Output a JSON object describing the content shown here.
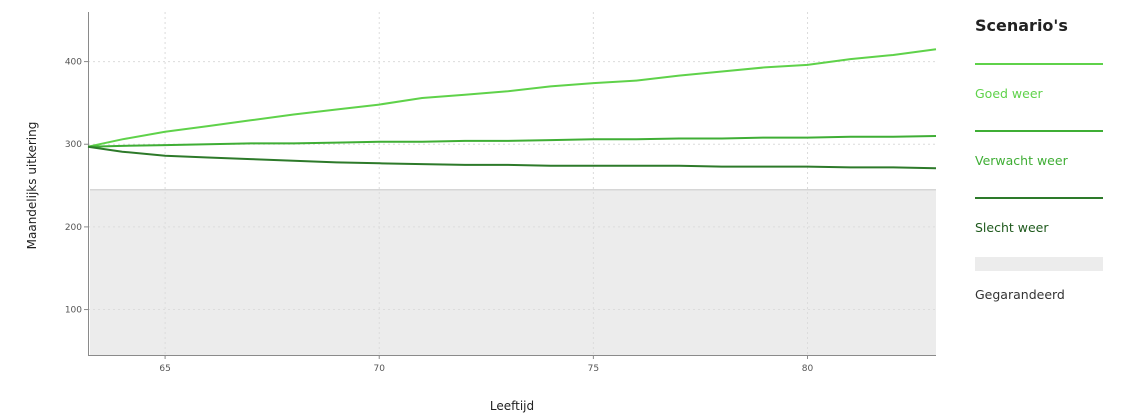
{
  "chart_data": {
    "type": "line",
    "xlabel": "Leeftijd",
    "ylabel": "Maandelijks uitkering",
    "xlim": [
      63.2,
      83
    ],
    "ylim": [
      45,
      460
    ],
    "xticks": [
      65,
      70,
      75,
      80
    ],
    "yticks": [
      100,
      200,
      300,
      400
    ],
    "grid": true,
    "legend_title": "Scenario's",
    "legend_position": "right",
    "x": [
      63.2,
      64,
      65,
      66,
      67,
      68,
      69,
      70,
      71,
      72,
      73,
      74,
      75,
      76,
      77,
      78,
      79,
      80,
      81,
      82,
      83
    ],
    "series": [
      {
        "name": "Goed weer",
        "color": "#5fd24a",
        "values": [
          297,
          306,
          315,
          322,
          329,
          336,
          342,
          348,
          356,
          360,
          364,
          370,
          374,
          377,
          383,
          388,
          393,
          396,
          403,
          408,
          415
        ]
      },
      {
        "name": "Verwacht weer",
        "color": "#3fae35",
        "values": [
          297,
          298,
          299,
          300,
          301,
          301,
          302,
          303,
          303,
          304,
          304,
          305,
          306,
          306,
          307,
          307,
          308,
          308,
          309,
          309,
          310
        ]
      },
      {
        "name": "Slecht weer",
        "color": "#2d7a2a",
        "values": [
          297,
          291,
          286,
          284,
          282,
          280,
          278,
          277,
          276,
          275,
          275,
          274,
          274,
          274,
          274,
          273,
          273,
          273,
          272,
          272,
          271
        ]
      }
    ],
    "guaranteed": {
      "name": "Gegarandeerd",
      "color": "#ececec",
      "value": 245
    }
  }
}
